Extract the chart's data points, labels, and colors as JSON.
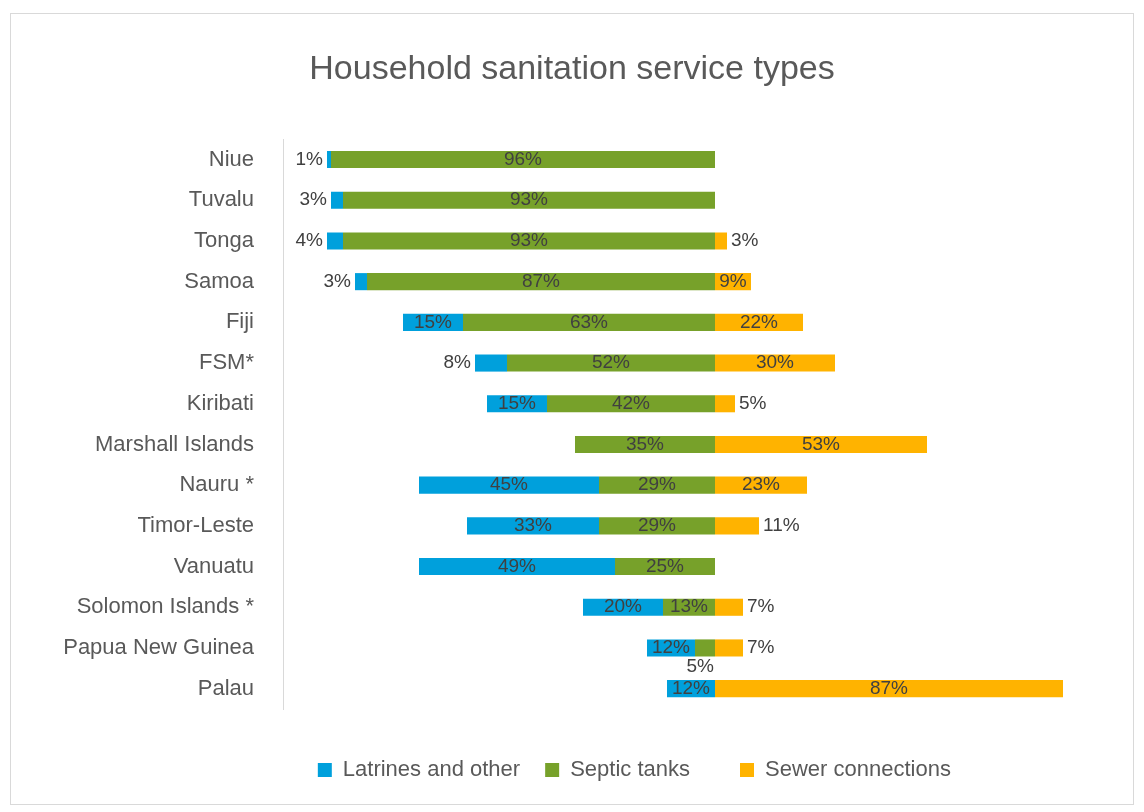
{
  "chart_data": [
    {
      "type": "bar",
      "orientation": "horizontal",
      "stacked": true,
      "title": "Household sanitation service types",
      "categories": [
        "Niue",
        "Tuvalu",
        "Tonga",
        "Samoa",
        "Fiji",
        "FSM*",
        "Kiribati",
        "Marshall Islands",
        "Nauru *",
        "Timor-Leste",
        "Vanuatu",
        "Solomon Islands *",
        "Papua New Guinea",
        "Palau"
      ],
      "series": [
        {
          "name": "Septic tanks",
          "color": "#77a12a",
          "values": [
            96,
            93,
            93,
            87,
            63,
            52,
            42,
            35,
            29,
            29,
            25,
            13,
            5,
            null
          ],
          "value_labels": [
            "96%",
            "93%",
            "93%",
            "87%",
            "63%",
            "52%",
            "42%",
            "35%",
            "29%",
            "29%",
            "25%",
            "13%",
            "5%",
            null
          ]
        },
        {
          "name": "Latrines and other",
          "color": "#00a0dc",
          "values": [
            1,
            3,
            4,
            3,
            15,
            8,
            15,
            null,
            45,
            33,
            49,
            20,
            12,
            12
          ],
          "value_labels": [
            "1%",
            "3%",
            "4%",
            "3%",
            "15%",
            "8%",
            "15%",
            null,
            "45%",
            "33%",
            "49%",
            "20%",
            "12%",
            "12%"
          ]
        }
      ],
      "xlim": [
        108,
        0
      ],
      "tick_labels": "y",
      "grid": false,
      "legend": "bottom right"
    },
    {
      "type": "bar",
      "orientation": "horizontal",
      "categories": [
        null,
        null,
        null,
        null,
        null,
        null,
        null,
        null,
        null,
        null,
        null,
        null,
        null,
        null
      ],
      "series": [
        {
          "name": "Sewer connections",
          "color": "#ffb300",
          "values": [
            null,
            null,
            3,
            9,
            22,
            30,
            5,
            53,
            23,
            11,
            null,
            7,
            7,
            87
          ],
          "value_labels": [
            null,
            null,
            "3%",
            "9%",
            "22%",
            "30%",
            "5%",
            "53%",
            "23%",
            "11%",
            null,
            "7%",
            "7%",
            "87%"
          ]
        }
      ],
      "xlim": [
        0,
        87
      ],
      "tick_labels": false,
      "grid": false,
      "legend": "bottom left"
    }
  ]
}
